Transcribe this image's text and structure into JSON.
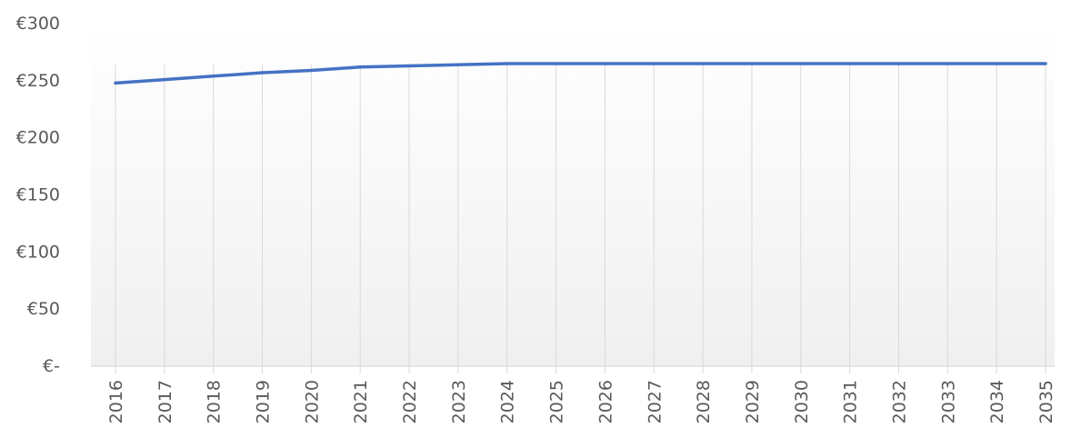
{
  "chart_data": {
    "type": "line",
    "title": "",
    "xlabel": "",
    "ylabel": "",
    "categories": [
      "2016",
      "2017",
      "2018",
      "2019",
      "2020",
      "2021",
      "2022",
      "2023",
      "2024",
      "2025",
      "2026",
      "2027",
      "2028",
      "2029",
      "2030",
      "2031",
      "2032",
      "2033",
      "2034",
      "2035"
    ],
    "y_ticks": [
      0,
      50,
      100,
      150,
      200,
      250,
      300
    ],
    "y_tick_labels": [
      "€-",
      "€50",
      "€100",
      "€150",
      "€200",
      "€250",
      "€300"
    ],
    "ylim": [
      0,
      300
    ],
    "grid": "vertical",
    "legend": "none",
    "series": [
      {
        "color": "#4472c4",
        "values": [
          248,
          251,
          254,
          257,
          259,
          262,
          263,
          264,
          265,
          265,
          265,
          265,
          265,
          265,
          265,
          265,
          265,
          265,
          265,
          265
        ]
      }
    ]
  }
}
